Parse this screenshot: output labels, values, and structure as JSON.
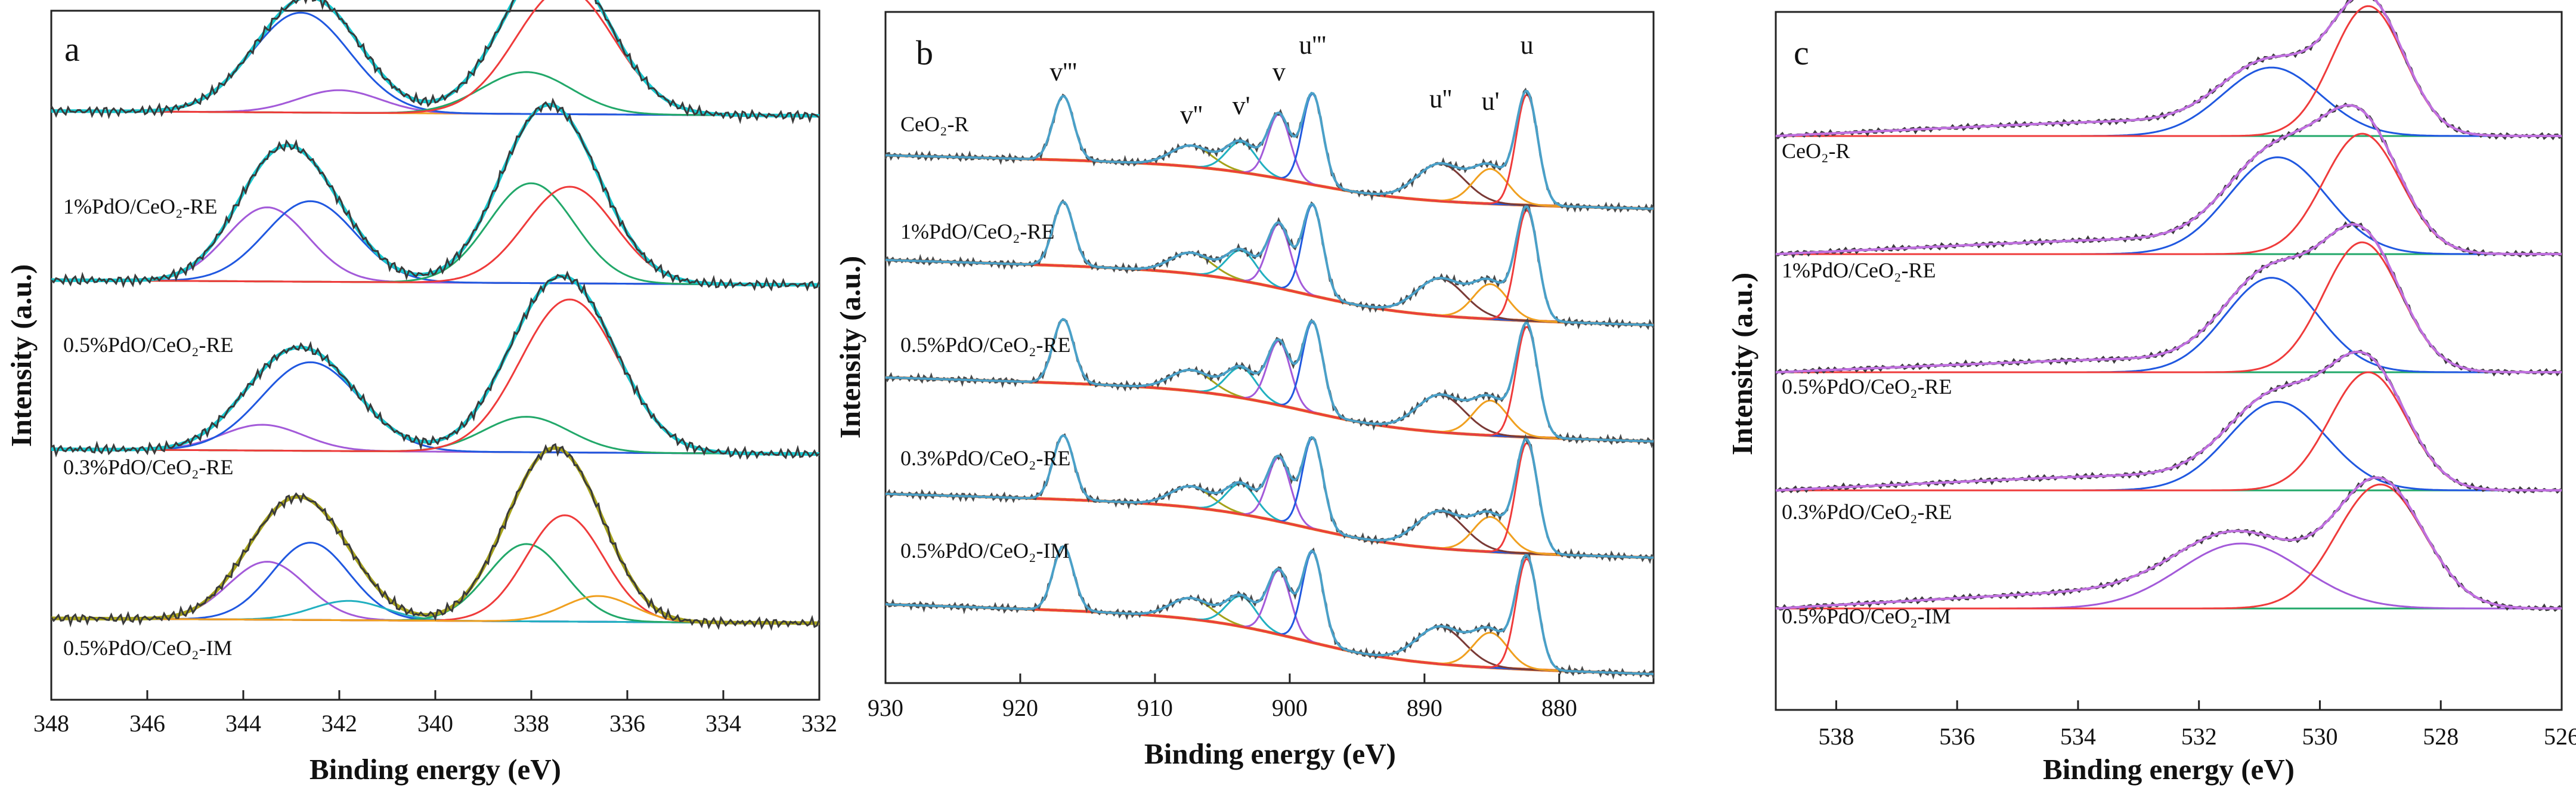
{
  "figure": {
    "panels": [
      {
        "letter": "a",
        "xlabel": "Binding energy (eV)",
        "ylabel": "Intensity (a.u.)",
        "xticks": [
          "348",
          "346",
          "344",
          "342",
          "340",
          "338",
          "336",
          "334",
          "332"
        ],
        "samples": [
          "1%PdO/CeO₂-RE",
          "0.5%PdO/CeO₂-RE",
          "0.3%PdO/CeO₂-RE",
          "0.5%PdO/CeO₂-IM"
        ],
        "peak_labels": []
      },
      {
        "letter": "b",
        "xlabel": "Binding energy (eV)",
        "ylabel": "Intensity (a.u.)",
        "xticks": [
          "930",
          "920",
          "910",
          "900",
          "890",
          "880"
        ],
        "samples": [
          "CeO₂-R",
          "1%PdO/CeO₂-RE",
          "0.5%PdO/CeO₂-RE",
          "0.3%PdO/CeO₂-RE",
          "0.5%PdO/CeO₂-IM"
        ],
        "peak_labels": [
          "v'''",
          "v''",
          "v'",
          "v",
          "u'''",
          "u''",
          "u'",
          "u"
        ]
      },
      {
        "letter": "c",
        "xlabel": "Binding energy (eV)",
        "ylabel": "Intensity (a.u.)",
        "xticks": [
          "538",
          "536",
          "534",
          "532",
          "530",
          "528",
          "526"
        ],
        "samples": [
          "CeO₂-R",
          "1%PdO/CeO₂-RE",
          "0.5%PdO/CeO₂-RE",
          "0.3%PdO/CeO₂-RE",
          "0.5%PdO/CeO₂-IM"
        ],
        "peak_labels": []
      }
    ]
  },
  "chart_data": [
    {
      "type": "line",
      "panel": "a",
      "xlabel": "Binding energy (eV)",
      "ylabel": "Intensity (a.u.)",
      "xlim": [
        348,
        332
      ],
      "x_reversed": true,
      "yticks_shown": false,
      "traces": [
        {
          "sample": "1%PdO/CeO₂-RE",
          "offset": 3.15,
          "baseline": "orange",
          "envelope_color": "#16c8cf",
          "components": [
            {
              "color": "#a35ad9",
              "center": 342.0,
              "amp": 0.14,
              "fwhm": 2.0
            },
            {
              "color": "#2058e0",
              "center": 342.8,
              "amp": 0.62,
              "fwhm": 2.4
            },
            {
              "color": "#22a86a",
              "center": 338.1,
              "amp": 0.26,
              "fwhm": 2.2
            },
            {
              "color": "#ef3b3b",
              "center": 337.3,
              "amp": 0.78,
              "fwhm": 2.4
            }
          ]
        },
        {
          "sample": "0.5%PdO/CeO₂-RE",
          "offset": 2.1,
          "baseline": "orange",
          "envelope_color": "#16c8cf",
          "components": [
            {
              "color": "#a35ad9",
              "center": 343.5,
              "amp": 0.46,
              "fwhm": 2.0
            },
            {
              "color": "#2058e0",
              "center": 342.6,
              "amp": 0.5,
              "fwhm": 2.2
            },
            {
              "color": "#22a86a",
              "center": 338.0,
              "amp": 0.62,
              "fwhm": 2.1
            },
            {
              "color": "#ef3b3b",
              "center": 337.2,
              "amp": 0.6,
              "fwhm": 2.2
            }
          ]
        },
        {
          "sample": "0.3%PdO/CeO₂-RE",
          "offset": 1.05,
          "baseline": "orange",
          "envelope_color": "#16c8cf",
          "components": [
            {
              "color": "#a35ad9",
              "center": 343.6,
              "amp": 0.16,
              "fwhm": 2.0
            },
            {
              "color": "#2058e0",
              "center": 342.6,
              "amp": 0.55,
              "fwhm": 2.4
            },
            {
              "color": "#22a86a",
              "center": 338.1,
              "amp": 0.22,
              "fwhm": 2.1
            },
            {
              "color": "#ef3b3b",
              "center": 337.2,
              "amp": 0.95,
              "fwhm": 2.4
            }
          ]
        },
        {
          "sample": "0.5%PdO/CeO₂-IM",
          "offset": 0.0,
          "baseline": "purple",
          "envelope_color": "#a6a21a",
          "components": [
            {
              "color": "#a35ad9",
              "center": 343.5,
              "amp": 0.36,
              "fwhm": 1.9
            },
            {
              "color": "#2058e0",
              "center": 342.6,
              "amp": 0.48,
              "fwhm": 1.9
            },
            {
              "color": "#22b0c0",
              "center": 341.8,
              "amp": 0.12,
              "fwhm": 1.8
            },
            {
              "color": "#22a86a",
              "center": 338.1,
              "amp": 0.48,
              "fwhm": 1.9
            },
            {
              "color": "#ef3b3b",
              "center": 337.3,
              "amp": 0.66,
              "fwhm": 1.9
            },
            {
              "color": "#f0a020",
              "center": 336.6,
              "amp": 0.16,
              "fwhm": 1.7
            }
          ]
        }
      ]
    },
    {
      "type": "line",
      "panel": "b",
      "xlabel": "Binding energy (eV)",
      "ylabel": "Intensity (a.u.)",
      "xlim": [
        930,
        873
      ],
      "x_reversed": true,
      "yticks_shown": false,
      "peak_labels": [
        {
          "label": "v'''",
          "x": 916.8
        },
        {
          "label": "v''",
          "x": 907.3
        },
        {
          "label": "v'",
          "x": 903.6
        },
        {
          "label": "v",
          "x": 900.8
        },
        {
          "label": "u'''",
          "x": 898.3
        },
        {
          "label": "u''",
          "x": 888.8
        },
        {
          "label": "u'",
          "x": 885.1
        },
        {
          "label": "u",
          "x": 882.4
        }
      ],
      "traces": [
        {
          "sample": "CeO₂-R",
          "offset": 4.0,
          "envelope_color": "#4aa0c8",
          "baseline_start": 0.46,
          "baseline_end": 0.0
        },
        {
          "sample": "1%PdO/CeO₂-RE",
          "offset": 3.0,
          "envelope_color": "#4aa0c8",
          "baseline_start": 0.56,
          "baseline_end": 0.0
        },
        {
          "sample": "0.5%PdO/CeO₂-RE",
          "offset": 2.0,
          "envelope_color": "#4aa0c8",
          "baseline_start": 0.55,
          "baseline_end": 0.0
        },
        {
          "sample": "0.3%PdO/CeO₂-RE",
          "offset": 1.0,
          "envelope_color": "#4aa0c8",
          "baseline_start": 0.55,
          "baseline_end": 0.0
        },
        {
          "sample": "0.5%PdO/CeO₂-IM",
          "offset": 0.0,
          "envelope_color": "#4aa0c8",
          "baseline_start": 0.6,
          "baseline_end": 0.0
        }
      ],
      "components": [
        {
          "color": "#22a86a",
          "center": 916.8,
          "amp": 0.55,
          "fwhm": 1.8
        },
        {
          "color": "#a6a21a",
          "center": 907.3,
          "amp": 0.18,
          "fwhm": 3.6
        },
        {
          "color": "#22b0c0",
          "center": 903.6,
          "amp": 0.26,
          "fwhm": 2.6
        },
        {
          "color": "#a35ad9",
          "center": 900.8,
          "amp": 0.55,
          "fwhm": 2.0
        },
        {
          "color": "#2058e0",
          "center": 898.3,
          "amp": 0.78,
          "fwhm": 1.8
        },
        {
          "color": "#7a3a36",
          "center": 888.8,
          "amp": 0.32,
          "fwhm": 4.2
        },
        {
          "color": "#f0a020",
          "center": 885.1,
          "amp": 0.3,
          "fwhm": 3.0
        },
        {
          "color": "#ef3b3b",
          "center": 882.4,
          "amp": 0.95,
          "fwhm": 1.9
        }
      ]
    },
    {
      "type": "line",
      "panel": "c",
      "xlabel": "Binding energy (eV)",
      "ylabel": "Intensity (a.u.)",
      "xlim": [
        539,
        526
      ],
      "x_reversed": true,
      "yticks_shown": false,
      "traces": [
        {
          "sample": "CeO₂-R",
          "offset": 4.0,
          "components": [
            {
              "color": "#2058e0",
              "center": 530.8,
              "amp": 0.58,
              "fwhm": 1.9
            },
            {
              "color": "#ef3b3b",
              "center": 529.2,
              "amp": 1.1,
              "fwhm": 1.4
            }
          ],
          "tail_amp": 0.18
        },
        {
          "sample": "1%PdO/CeO₂-RE",
          "offset": 3.0,
          "components": [
            {
              "color": "#2058e0",
              "center": 530.7,
              "amp": 0.82,
              "fwhm": 1.9
            },
            {
              "color": "#ef3b3b",
              "center": 529.3,
              "amp": 1.02,
              "fwhm": 1.5
            }
          ],
          "tail_amp": 0.18
        },
        {
          "sample": "0.5%PdO/CeO₂-RE",
          "offset": 2.0,
          "components": [
            {
              "color": "#2058e0",
              "center": 530.8,
              "amp": 0.8,
              "fwhm": 1.8
            },
            {
              "color": "#ef3b3b",
              "center": 529.3,
              "amp": 1.1,
              "fwhm": 1.5
            }
          ],
          "tail_amp": 0.16
        },
        {
          "sample": "0.3%PdO/CeO₂-RE",
          "offset": 1.0,
          "components": [
            {
              "color": "#2058e0",
              "center": 530.7,
              "amp": 0.75,
              "fwhm": 1.9
            },
            {
              "color": "#ef3b3b",
              "center": 529.2,
              "amp": 1.0,
              "fwhm": 1.5
            }
          ],
          "tail_amp": 0.18
        },
        {
          "sample": "0.5%PdO/CeO₂-IM",
          "offset": 0.0,
          "components": [
            {
              "color": "#a35ad9",
              "center": 531.3,
              "amp": 0.55,
              "fwhm": 2.4
            },
            {
              "color": "#ef3b3b",
              "center": 529.0,
              "amp": 1.05,
              "fwhm": 1.7
            }
          ],
          "tail_amp": 0.22
        }
      ]
    }
  ]
}
